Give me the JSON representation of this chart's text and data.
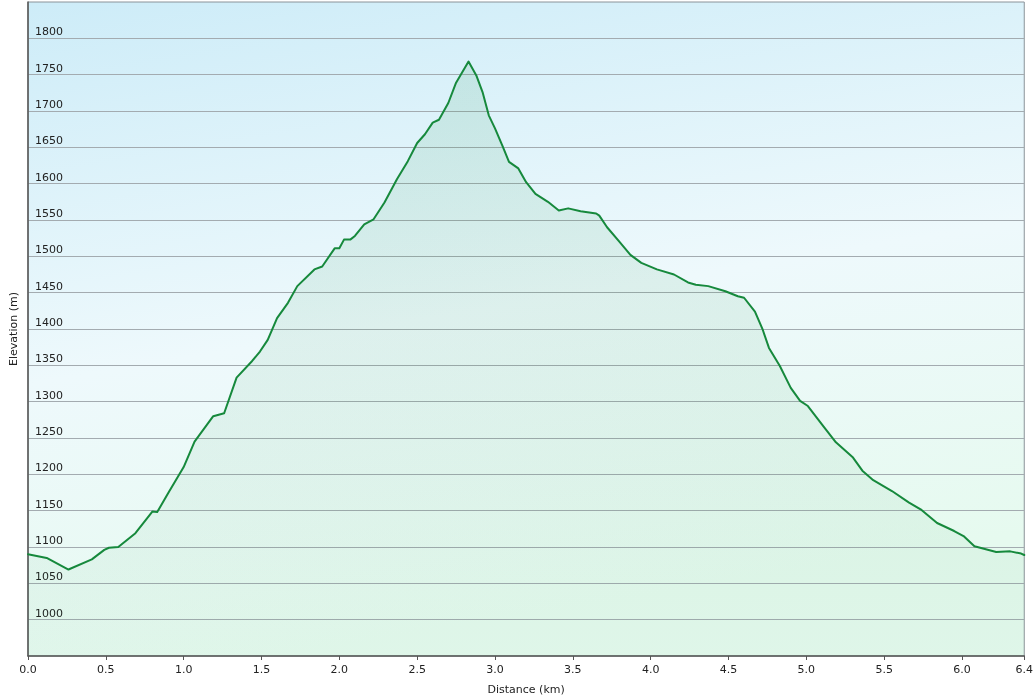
{
  "chart_data": {
    "type": "area",
    "xlabel": "Distance (km)",
    "ylabel": "Elevation (m)",
    "x": [
      0,
      0.12,
      0.26,
      0.41,
      0.49,
      0.52,
      0.58,
      0.69,
      0.8,
      0.83,
      0.9,
      1.0,
      1.07,
      1.19,
      1.26,
      1.34,
      1.44,
      1.49,
      1.54,
      1.6,
      1.67,
      1.73,
      1.84,
      1.89,
      1.97,
      2.0,
      2.03,
      2.07,
      2.1,
      2.16,
      2.22,
      2.29,
      2.37,
      2.44,
      2.5,
      2.55,
      2.6,
      2.64,
      2.7,
      2.75,
      2.83,
      2.88,
      2.92,
      2.96,
      3.0,
      3.05,
      3.09,
      3.15,
      3.2,
      3.26,
      3.34,
      3.41,
      3.47,
      3.55,
      3.65,
      3.67,
      3.72,
      3.8,
      3.87,
      3.94,
      4.04,
      4.15,
      4.24,
      4.29,
      4.37,
      4.48,
      4.56,
      4.6,
      4.67,
      4.72,
      4.76,
      4.83,
      4.9,
      4.96,
      5.01,
      5.11,
      5.19,
      5.3,
      5.36,
      5.43,
      5.55,
      5.66,
      5.74,
      5.84,
      5.95,
      6.01,
      6.08,
      6.22,
      6.31,
      6.38,
      6.4
    ],
    "series": [
      {
        "color": "#16893c",
        "values": [
          1090,
          1085,
          1069,
          1083,
          1096,
          1099,
          1100,
          1119,
          1149,
          1148,
          1174,
          1210,
          1245,
          1280,
          1284,
          1333,
          1356,
          1369,
          1385,
          1415,
          1436,
          1459,
          1482,
          1486,
          1511,
          1511,
          1523,
          1523,
          1528,
          1544,
          1551,
          1574,
          1606,
          1631,
          1656,
          1668,
          1684,
          1688,
          1711,
          1739,
          1768,
          1749,
          1726,
          1694,
          1676,
          1651,
          1630,
          1621,
          1602,
          1586,
          1575,
          1563,
          1566,
          1562,
          1559,
          1556,
          1540,
          1520,
          1502,
          1491,
          1482,
          1475,
          1464,
          1461,
          1459,
          1452,
          1445,
          1443,
          1424,
          1399,
          1374,
          1349,
          1319,
          1301,
          1294,
          1266,
          1244,
          1223,
          1205,
          1192,
          1177,
          1161,
          1151,
          1133,
          1122,
          1115,
          1101,
          1093,
          1094,
          1091,
          1089
        ]
      }
    ],
    "xlim": [
      0,
      6.4
    ],
    "ylim": [
      950,
      1850
    ],
    "xticks": [
      {
        "value": 0,
        "label": "0.0"
      },
      0.5,
      {
        "value": 1,
        "label": "1.0"
      },
      1.5,
      {
        "value": 2,
        "label": "2.0"
      },
      2.5,
      {
        "value": 3,
        "label": "3.0"
      },
      3.5,
      {
        "value": 4,
        "label": "4.0"
      },
      4.5,
      {
        "value": 5,
        "label": "5.0"
      },
      5.5,
      {
        "value": 6,
        "label": "6.0"
      },
      6.4
    ],
    "yticks": [
      1000,
      1050,
      1100,
      1150,
      1200,
      1250,
      1300,
      1350,
      1400,
      1450,
      1500,
      1550,
      1600,
      1650,
      1700,
      1750,
      1800
    ],
    "grid": "y",
    "marker": "none",
    "line_style": "solid"
  }
}
